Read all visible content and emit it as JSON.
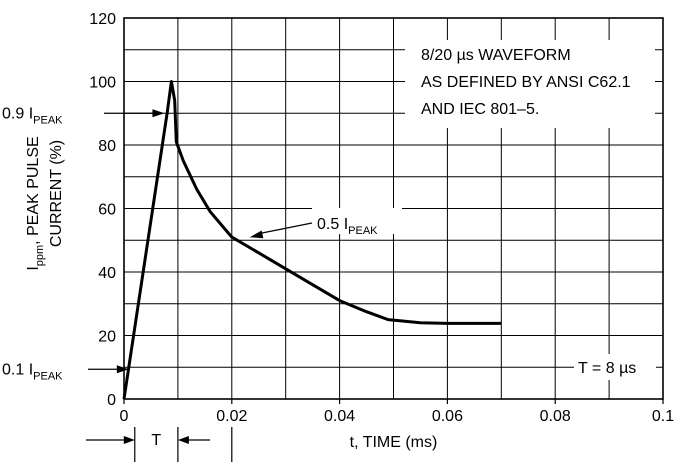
{
  "chart_data": {
    "type": "line",
    "xlabel": "t, TIME (ms)",
    "ylabel": {
      "main": "I",
      "main_sub": "ppm",
      "rest_line1": ", PEAK PULSE",
      "line2": "CURRENT (%)"
    },
    "xlim": [
      0,
      0.1
    ],
    "ylim": [
      0,
      120
    ],
    "x_ticks": [
      0,
      0.02,
      0.04,
      0.06,
      0.08,
      0.1
    ],
    "x_tick_labels": [
      "0",
      "0.02",
      "0.04",
      "0.06",
      "0.08",
      "0.1"
    ],
    "y_ticks": [
      0,
      20,
      40,
      60,
      80,
      100,
      120
    ],
    "y_tick_labels": [
      "0",
      "20",
      "40",
      "60",
      "80",
      "100",
      "120"
    ],
    "x_minor_step": 0.01,
    "y_minor_step": 10,
    "grid": true,
    "series": [
      {
        "points": [
          [
            0,
            0
          ],
          [
            0.008,
            90
          ],
          [
            0.0088,
            100
          ],
          [
            0.0094,
            94
          ],
          [
            0.0097,
            81
          ],
          [
            0.011,
            75
          ],
          [
            0.0135,
            66
          ],
          [
            0.016,
            59
          ],
          [
            0.02,
            51
          ],
          [
            0.025,
            46
          ],
          [
            0.03,
            41
          ],
          [
            0.035,
            36
          ],
          [
            0.04,
            31
          ],
          [
            0.045,
            27.5
          ],
          [
            0.049,
            25
          ],
          [
            0.055,
            24
          ],
          [
            0.06,
            23.8
          ],
          [
            0.065,
            23.8
          ],
          [
            0.07,
            23.8
          ]
        ]
      }
    ],
    "annotations": {
      "box_text": [
        "8/20 µs WAVEFORM",
        "AS DEFINED BY ANSI C62.1",
        "AND IEC 801–5."
      ],
      "peak_90": {
        "label": "0.9 I",
        "sub": "PEAK",
        "y": 90
      },
      "peak_10": {
        "label": "0.1 I",
        "sub": "PEAK",
        "y": 10
      },
      "peak_50": {
        "label": "0.5 I",
        "sub": "PEAK",
        "x": 0.02,
        "y": 50
      },
      "t_marker": {
        "label": "T",
        "x_start": 0.002,
        "x_end": 0.01
      },
      "t_value": "T = 8 µs"
    }
  }
}
